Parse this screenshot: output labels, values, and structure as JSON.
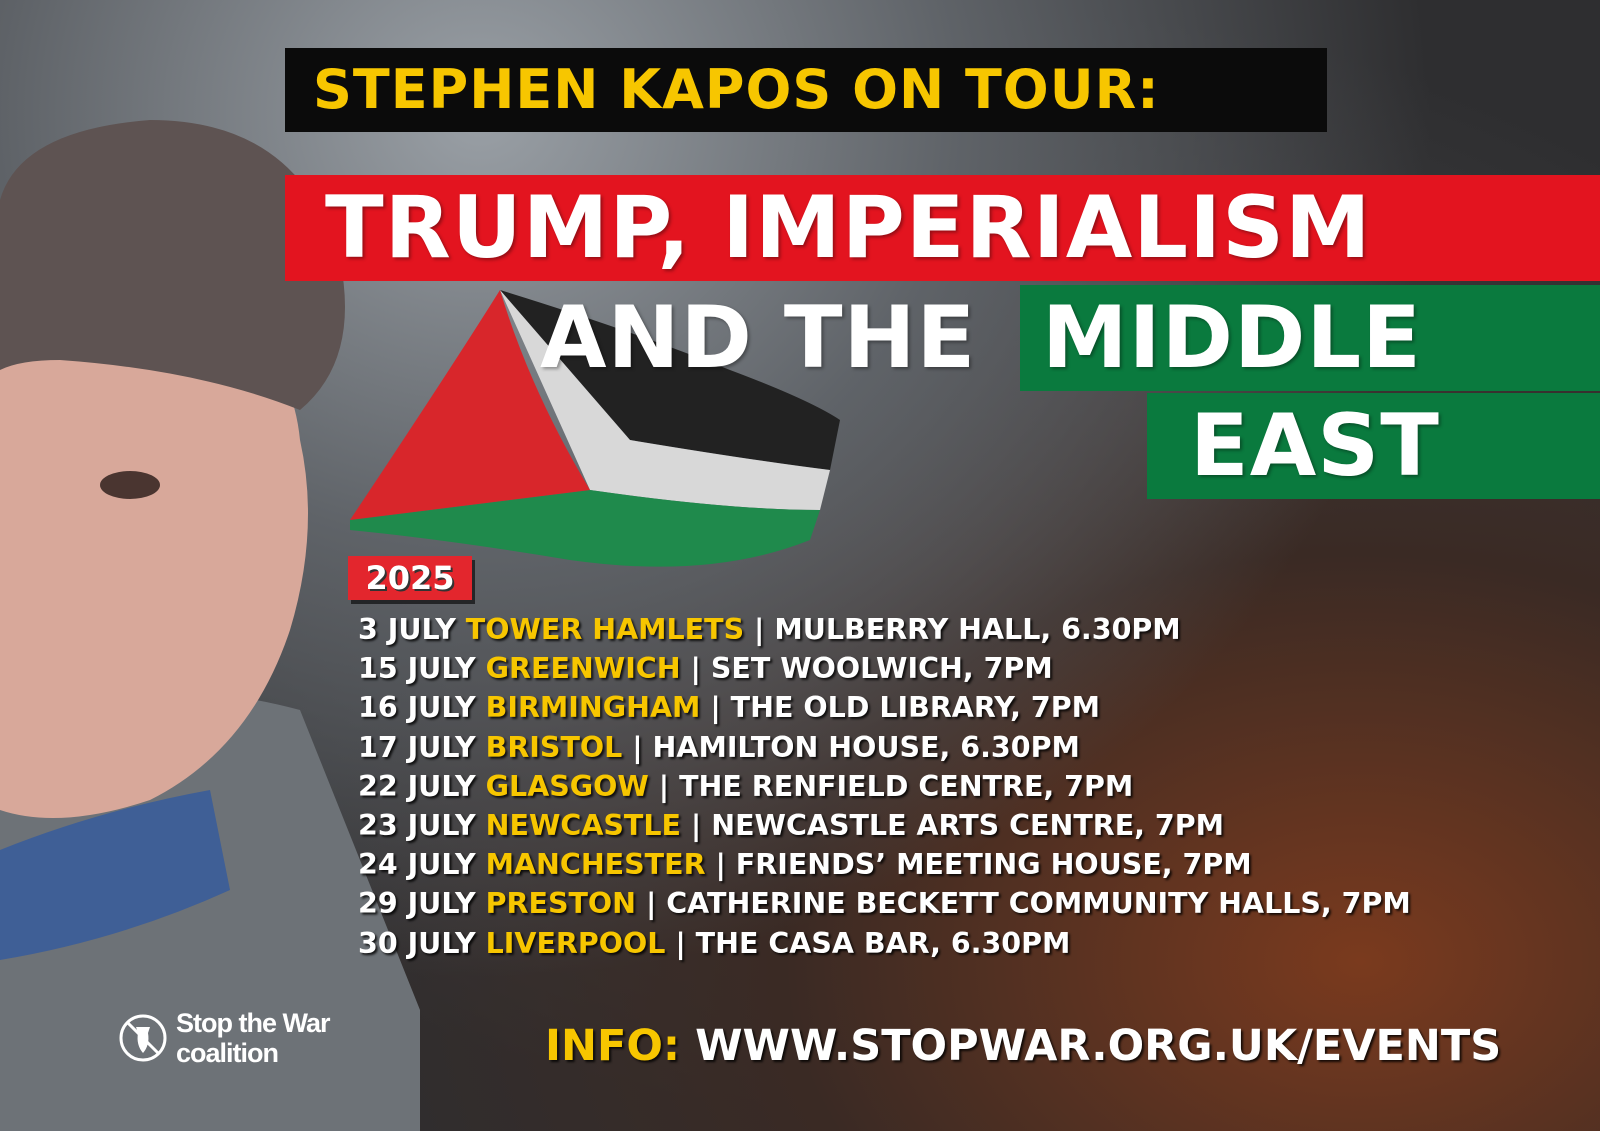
{
  "header": {
    "title": "STEPHEN KAPOS ON TOUR:"
  },
  "headline": {
    "line1": "TRUMP, IMPERIALISM",
    "line2a": "AND THE",
    "line2b": "MIDDLE",
    "line3": "EAST"
  },
  "year": "2025",
  "events": [
    {
      "date": "3 JULY",
      "city": "TOWER HAMLETS",
      "venue": "| MULBERRY HALL, 6.30PM"
    },
    {
      "date": "15 JULY",
      "city": "GREENWICH",
      "venue": "| SET WOOLWICH, 7PM"
    },
    {
      "date": "16 JULY",
      "city": "BIRMINGHAM",
      "venue": "| THE OLD LIBRARY, 7PM"
    },
    {
      "date": "17 JULY",
      "city": "BRISTOL",
      "venue": "| HAMILTON HOUSE, 6.30PM"
    },
    {
      "date": "22 JULY",
      "city": "GLASGOW",
      "venue": "| THE RENFIELD CENTRE, 7PM"
    },
    {
      "date": "23 JULY",
      "city": "NEWCASTLE",
      "venue": "| NEWCASTLE ARTS CENTRE, 7PM"
    },
    {
      "date": "24 JULY",
      "city": "MANCHESTER",
      "venue": "| FRIENDS’ MEETING HOUSE, 7PM"
    },
    {
      "date": "29 JULY",
      "city": "PRESTON",
      "venue": "| CATHERINE BECKETT COMMUNITY HALLS, 7PM"
    },
    {
      "date": "30 JULY",
      "city": "LIVERPOOL",
      "venue": "| THE CASA BAR, 6.30PM"
    }
  ],
  "info": {
    "label": "INFO:",
    "url": "WWW.STOPWAR.ORG.UK/EVENTS"
  },
  "logo": {
    "line1": "Stop the War",
    "line2": "coalition",
    "icon": "crossed-out-bomb-icon"
  },
  "colors": {
    "yellow": "#f7c600",
    "red": "#e3141f",
    "green": "#0a7a3e",
    "black": "#0b0b0b"
  }
}
